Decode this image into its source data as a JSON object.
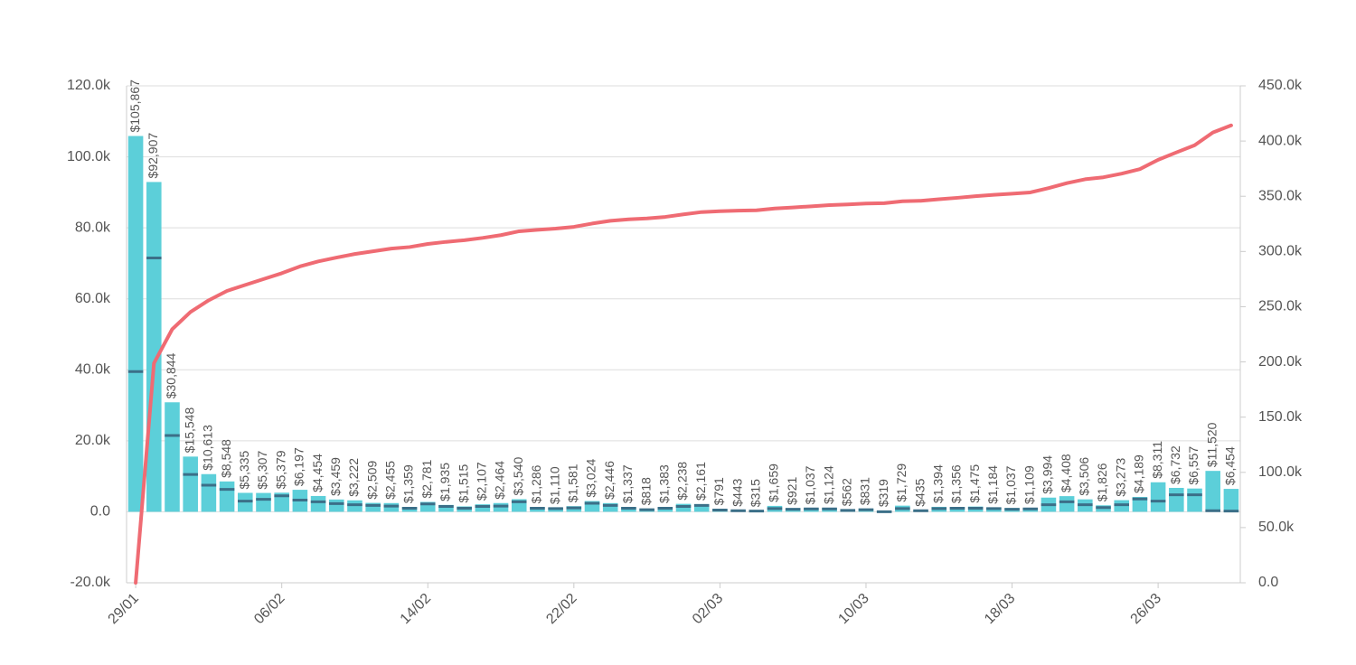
{
  "chart_data": {
    "type": "bar",
    "categories": [
      "29/01",
      null,
      null,
      null,
      null,
      null,
      null,
      null,
      "06/02",
      null,
      null,
      null,
      null,
      null,
      null,
      null,
      "14/02",
      null,
      null,
      null,
      null,
      null,
      null,
      null,
      "22/02",
      null,
      null,
      null,
      null,
      null,
      null,
      null,
      "02/03",
      null,
      null,
      null,
      null,
      null,
      null,
      null,
      "10/03",
      null,
      null,
      null,
      null,
      null,
      null,
      null,
      "18/03",
      null,
      null,
      null,
      null,
      null,
      null,
      null,
      "26/03",
      null,
      null,
      null,
      null
    ],
    "series": [
      {
        "type": "bar",
        "color": "#5ccfd9",
        "values": [
          105867,
          92907,
          30844,
          15548,
          10613,
          8548,
          5335,
          5307,
          5379,
          6197,
          4454,
          3459,
          3222,
          2509,
          2455,
          1359,
          2781,
          1935,
          1515,
          2107,
          2464,
          3540,
          1286,
          1110,
          1581,
          3024,
          2446,
          1337,
          818,
          1383,
          2238,
          2161,
          791,
          443,
          315,
          1659,
          921,
          1037,
          1124,
          562,
          831,
          319,
          1729,
          435,
          1394,
          1356,
          1475,
          1184,
          1037,
          1109,
          3994,
          4408,
          3506,
          1826,
          3273,
          4189,
          8311,
          6732,
          6557,
          11520,
          6454
        ],
        "value_labels": [
          "$105,867",
          "$92,907",
          "$30,844",
          "$15,548",
          "$10,613",
          "$8,548",
          "$5,335",
          "$5,307",
          "$5,379",
          "$6,197",
          "$4,454",
          "$3,459",
          "$3,222",
          "$2,509",
          "$2,455",
          "$1,359",
          "$2,781",
          "$1,935",
          "$1,515",
          "$2,107",
          "$2,464",
          "$3,540",
          "$1,286",
          "$1,110",
          "$1,581",
          "$3,024",
          "$2,446",
          "$1,337",
          "$818",
          "$1,383",
          "$2,238",
          "$2,161",
          "$791",
          "$443",
          "$315",
          "$1,659",
          "$921",
          "$1,037",
          "$1,124",
          "$562",
          "$831",
          "$319",
          "$1,729",
          "$435",
          "$1,394",
          "$1,356",
          "$1,475",
          "$1,184",
          "$1,037",
          "$1,109",
          "$3,994",
          "$4,408",
          "$3,506",
          "$1,826",
          "$3,273",
          "$4,189",
          "$8,311",
          "$6,732",
          "$6,557",
          "$11,520",
          "$6,454"
        ]
      },
      {
        "type": "marker",
        "color": "#3b6f88",
        "values": [
          39500,
          71500,
          21500,
          10500,
          7500,
          6300,
          3000,
          3500,
          4500,
          3300,
          2800,
          2300,
          2000,
          1800,
          1600,
          1000,
          2200,
          1500,
          1000,
          1500,
          1600,
          2800,
          1000,
          900,
          1100,
          2400,
          1800,
          1000,
          600,
          1000,
          1500,
          1800,
          500,
          300,
          200,
          900,
          700,
          800,
          800,
          400,
          600,
          0,
          900,
          300,
          900,
          1000,
          1000,
          900,
          700,
          800,
          2000,
          2800,
          2000,
          1200,
          2000,
          3600,
          3000,
          4800,
          4800,
          300,
          200
        ]
      },
      {
        "type": "line",
        "color": "#ef6b73",
        "axis": "y2",
        "values": [
          0,
          198800,
          229600,
          245200,
          255800,
          264300,
          269700,
          275000,
          280300,
          286500,
          291000,
          294500,
          297700,
          300200,
          302600,
          304000,
          306800,
          308700,
          310200,
          312300,
          314800,
          318300,
          319600,
          320700,
          322300,
          325300,
          327800,
          329100,
          329900,
          331300,
          333600,
          335700,
          336500,
          337000,
          337300,
          338900,
          339900,
          340900,
          342000,
          342600,
          343400,
          343700,
          345500,
          345900,
          347300,
          348600,
          350100,
          351300,
          352300,
          353500,
          357400,
          361900,
          365400,
          367200,
          370500,
          374600,
          383000,
          389700,
          396200,
          407800,
          414200
        ]
      }
    ],
    "ylim": [
      -20000,
      120000
    ],
    "yticks": [
      {
        "value": -20000,
        "label": "-20.0k"
      },
      {
        "value": 0,
        "label": "0.0"
      },
      {
        "value": 20000,
        "label": "20.0k"
      },
      {
        "value": 40000,
        "label": "40.0k"
      },
      {
        "value": 60000,
        "label": "60.0k"
      },
      {
        "value": 80000,
        "label": "80.0k"
      },
      {
        "value": 100000,
        "label": "100.0k"
      },
      {
        "value": 120000,
        "label": "120.0k"
      }
    ],
    "y2lim": [
      0,
      450000
    ],
    "y2ticks": [
      {
        "value": 0,
        "label": "0.0"
      },
      {
        "value": 50000,
        "label": "50.0k"
      },
      {
        "value": 100000,
        "label": "100.0k"
      },
      {
        "value": 150000,
        "label": "150.0k"
      },
      {
        "value": 200000,
        "label": "200.0k"
      },
      {
        "value": 250000,
        "label": "250.0k"
      },
      {
        "value": 300000,
        "label": "300.0k"
      },
      {
        "value": 350000,
        "label": "350.0k"
      },
      {
        "value": 400000,
        "label": "400.0k"
      },
      {
        "value": 450000,
        "label": "450.0k"
      }
    ],
    "grid": true
  }
}
